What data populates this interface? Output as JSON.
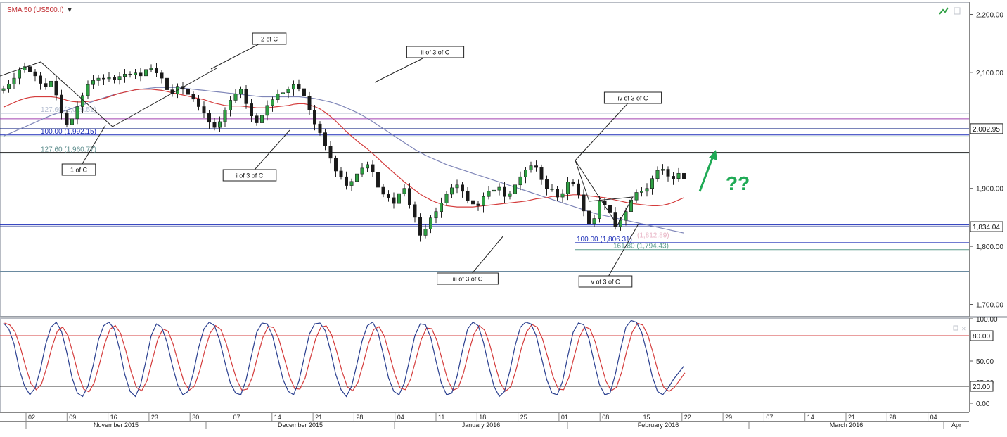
{
  "indicator": {
    "label": "SMA 50 (US500.I)"
  },
  "chart_data": {
    "type": "line",
    "title": "",
    "price_axis": {
      "ticks": [
        {
          "value": 2200,
          "label": "2,200.00"
        },
        {
          "value": 2100,
          "label": "2,100.00"
        },
        {
          "value": 1900,
          "label": "1,900.00"
        },
        {
          "value": 1800,
          "label": "1,800.00"
        },
        {
          "value": 1700,
          "label": "1,700.00"
        }
      ],
      "markers": [
        {
          "value": 2002.95,
          "label": "2,002.95"
        },
        {
          "value": 1834.04,
          "label": "1,834.04"
        }
      ],
      "range": [
        1680,
        2220
      ]
    },
    "stoch_axis": {
      "ticks": [
        {
          "value": 100,
          "label": "100.00"
        },
        {
          "value": 50,
          "label": "50.00"
        },
        {
          "value": 25,
          "label": "25.00"
        },
        {
          "value": 0,
          "label": "0.00"
        }
      ],
      "markers": [
        {
          "value": 80,
          "label": "80.00"
        },
        {
          "value": 20,
          "label": "20.00"
        }
      ],
      "range": [
        -10,
        100
      ]
    },
    "date_axis": {
      "days": [
        "02",
        "09",
        "16",
        "23",
        "30",
        "07",
        "14",
        "21",
        "28",
        "04",
        "11",
        "18",
        "25",
        "01",
        "08",
        "15",
        "22",
        "29",
        "07",
        "14",
        "21",
        "28",
        "04"
      ],
      "months": [
        "November 2015",
        "December 2015",
        "January 2016",
        "February 2016",
        "March 2016",
        "Apr"
      ]
    },
    "price_series": {
      "name": "US500.I",
      "close": [
        2072,
        2080,
        2090,
        2104,
        2110,
        2101,
        2094,
        2081,
        2075,
        2085,
        2061,
        2030,
        2010,
        2020,
        2041,
        2060,
        2079,
        2086,
        2090,
        2089,
        2091,
        2088,
        2093,
        2097,
        2096,
        2099,
        2094,
        2105,
        2107,
        2099,
        2090,
        2070,
        2063,
        2076,
        2071,
        2062,
        2054,
        2041,
        2030,
        2014,
        2005,
        2015,
        2035,
        2052,
        2063,
        2071,
        2046,
        2025,
        2013,
        2026,
        2043,
        2053,
        2063,
        2065,
        2071,
        2079,
        2072,
        2059,
        2035,
        2011,
        1996,
        1973,
        1952,
        1930,
        1920,
        1905,
        1912,
        1925,
        1935,
        1941,
        1928,
        1902,
        1890,
        1884,
        1874,
        1891,
        1900,
        1872,
        1850,
        1819,
        1830,
        1849,
        1860,
        1875,
        1890,
        1901,
        1906,
        1895,
        1879,
        1873,
        1870,
        1886,
        1895,
        1897,
        1902,
        1886,
        1891,
        1906,
        1920,
        1932,
        1939,
        1936,
        1915,
        1899,
        1899,
        1885,
        1891,
        1911,
        1908,
        1889,
        1861,
        1839,
        1848,
        1878,
        1871,
        1859,
        1834,
        1845,
        1860,
        1880,
        1893,
        1895,
        1900,
        1917,
        1931,
        1933,
        1921,
        1917,
        1926,
        1916
      ]
    },
    "sma50": [
      2040,
      2044,
      2048,
      2052,
      2055,
      2057,
      2058,
      2058,
      2058,
      2058,
      2057,
      2055,
      2052,
      2050,
      2049,
      2049,
      2050,
      2051,
      2053,
      2055,
      2058,
      2061,
      2064,
      2066,
      2068,
      2070,
      2071,
      2071,
      2071,
      2070,
      2069,
      2067,
      2065,
      2063,
      2061,
      2059,
      2057,
      2055,
      2053,
      2050,
      2047,
      2045,
      2043,
      2042,
      2042,
      2042,
      2041,
      2040,
      2039,
      2039,
      2039,
      2040,
      2041,
      2042,
      2043,
      2045,
      2046,
      2046,
      2044,
      2041,
      2037,
      2031,
      2024,
      2016,
      2007,
      1998,
      1990,
      1982,
      1975,
      1968,
      1960,
      1952,
      1943,
      1935,
      1927,
      1919,
      1911,
      1904,
      1897,
      1890,
      1885,
      1880,
      1876,
      1873,
      1870,
      1869,
      1868,
      1868,
      1868,
      1868,
      1869,
      1870,
      1871,
      1872,
      1873,
      1874,
      1875,
      1876,
      1877,
      1878,
      1880,
      1882,
      1883,
      1884,
      1886,
      1886,
      1887,
      1888,
      1889,
      1889,
      1888,
      1887,
      1886,
      1885,
      1884,
      1882,
      1880,
      1878,
      1876,
      1874,
      1873,
      1872,
      1871,
      1870,
      1870,
      1871,
      1873,
      1876,
      1880,
      1884
    ],
    "slow_ma": [
      1990,
      1994,
      1998,
      2002,
      2006,
      2010,
      2014,
      2018,
      2022,
      2026,
      2029,
      2032,
      2035,
      2038,
      2041,
      2044,
      2047,
      2050,
      2053,
      2056,
      2059,
      2062,
      2064,
      2066,
      2068,
      2070,
      2071,
      2072,
      2073,
      2074,
      2074,
      2074,
      2074,
      2074,
      2073,
      2072,
      2071,
      2070,
      2069,
      2068,
      2067,
      2066,
      2065,
      2064,
      2063,
      2062,
      2061,
      2060,
      2059,
      2058,
      2058,
      2058,
      2058,
      2058,
      2058,
      2058,
      2058,
      2057,
      2056,
      2055,
      2053,
      2051,
      2049,
      2046,
      2043,
      2039,
      2035,
      2031,
      2026,
      2021,
      2015,
      2009,
      2003,
      1997,
      1991,
      1985,
      1979,
      1973,
      1967,
      1962,
      1957,
      1953,
      1949,
      1945,
      1941,
      1938,
      1935,
      1932,
      1929,
      1926,
      1923,
      1920,
      1917,
      1914,
      1911,
      1908,
      1905,
      1902,
      1899,
      1896,
      1893,
      1890,
      1887,
      1884,
      1881,
      1878,
      1875,
      1872,
      1869,
      1866,
      1863,
      1860,
      1857,
      1855,
      1853,
      1851,
      1849,
      1847,
      1845,
      1843,
      1841,
      1839,
      1837,
      1835,
      1833,
      1831,
      1829,
      1827,
      1825,
      1823
    ],
    "horizontal_levels": [
      {
        "value": 2029.51,
        "label": "127.60 (2,029.51)",
        "color": "#b3bdd0"
      },
      {
        "value": 2020,
        "label": "",
        "color": "#a040b0"
      },
      {
        "value": 2002.95,
        "label": "",
        "color": "#2a3a8f"
      },
      {
        "value": 1992.15,
        "label": "100.00 (1,992.15)",
        "color": "#1d2fb8"
      },
      {
        "value": 1989,
        "label": "",
        "color": "#3aa040"
      },
      {
        "value": 1962,
        "label": "",
        "color": "#222222"
      },
      {
        "value": 1960.77,
        "label": "127.60 (1,960.77)",
        "color": "#5c8c8c"
      },
      {
        "value": 1837,
        "label": "",
        "color": "#1d2fb8"
      },
      {
        "value": 1834.04,
        "label": "",
        "color": "#2a3a8f"
      },
      {
        "value": 1812.89,
        "label": "",
        "color": "#e8b3c4"
      },
      {
        "value": 1806.31,
        "label": "100.00 (1,806.31)",
        "color": "#1d2fb8"
      },
      {
        "value": 1794.43,
        "label": "161.80 (1,794.43)",
        "color": "#5c9c8c"
      },
      {
        "value": 1757,
        "label": "",
        "color": "#6a8aa0"
      }
    ],
    "fib_overlap_text": "(1,812.89)",
    "annotations": [
      {
        "label": "1 of C",
        "price": 2010
      },
      {
        "label": "2 of C",
        "price": 2107
      },
      {
        "label": "i of 3 of C",
        "price": 2005
      },
      {
        "label": "ii of 3 of C",
        "price": 2079
      },
      {
        "label": "iii of 3 of C",
        "price": 1819
      },
      {
        "label": "iv of 3 of C",
        "price": 1906
      },
      {
        "label": "v of 3 of C",
        "price": 1834
      }
    ],
    "question_text": "??",
    "stoch_k": [
      95,
      88,
      70,
      40,
      20,
      10,
      18,
      40,
      70,
      90,
      96,
      85,
      60,
      30,
      12,
      8,
      20,
      45,
      75,
      92,
      96,
      88,
      64,
      34,
      14,
      8,
      22,
      50,
      80,
      94,
      90,
      72,
      45,
      22,
      10,
      14,
      36,
      66,
      88,
      96,
      92,
      74,
      48,
      24,
      12,
      10,
      28,
      56,
      84,
      95,
      94,
      80,
      54,
      28,
      14,
      10,
      26,
      54,
      82,
      94,
      95,
      86,
      62,
      34,
      16,
      8,
      20,
      46,
      74,
      92,
      96,
      84,
      58,
      30,
      14,
      10,
      24,
      52,
      80,
      94,
      93,
      78,
      50,
      24,
      10,
      12,
      32,
      62,
      88,
      96,
      92,
      72,
      44,
      20,
      8,
      14,
      38,
      68,
      90,
      96,
      94,
      80,
      54,
      28,
      12,
      10,
      26,
      56,
      84,
      95,
      93,
      76,
      48,
      22,
      10,
      12,
      34,
      64,
      90,
      98,
      96,
      84,
      60,
      32,
      14,
      10,
      18,
      28,
      36,
      44
    ]
  }
}
